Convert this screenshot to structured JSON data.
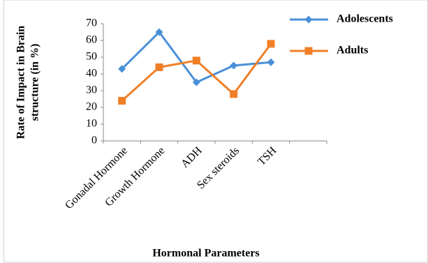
{
  "chart_data": {
    "type": "line",
    "x_label": "Hormonal Parameters",
    "y_label": [
      "Rate of Impact in Brain",
      "structure (in %)"
    ],
    "categories": [
      "Gonadal Hormone",
      "Growth Hormone",
      "ADH",
      "Sex steroids",
      "TSH",
      null
    ],
    "series": [
      {
        "name": "Adolescents",
        "color": "#4a90d9",
        "marker": "diamond",
        "values": [
          43,
          65,
          35,
          45,
          47,
          null
        ]
      },
      {
        "name": "Adults",
        "color": "#f07f27",
        "marker": "square",
        "values": [
          24,
          44,
          48,
          28,
          58,
          null
        ]
      }
    ],
    "ylim": [
      0,
      70
    ],
    "yticks": [
      0,
      10,
      20,
      30,
      40,
      50,
      60,
      70
    ],
    "grid": false,
    "legend": "top-right"
  }
}
